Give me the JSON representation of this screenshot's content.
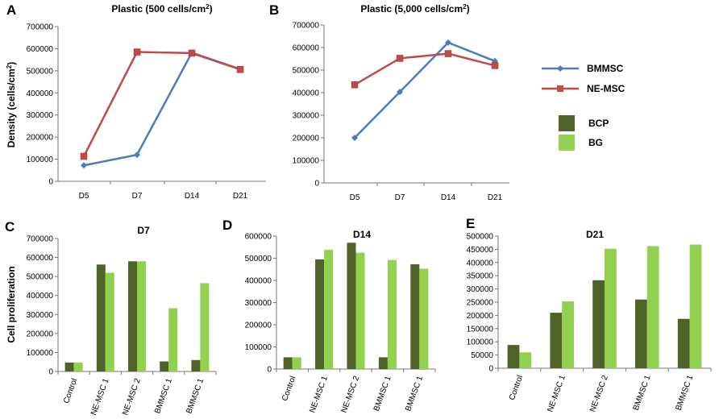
{
  "colors": {
    "bmmsc": "#4a7ebb",
    "nemsc": "#be4b48",
    "bcp": "#4f6228",
    "bg": "#92d050"
  },
  "legend": {
    "lines": [
      "BMMSC",
      "NE-MSC"
    ],
    "bars": [
      "BCP",
      "BG"
    ]
  },
  "chart_data": [
    {
      "panel": "A",
      "type": "line",
      "title": "Plastic  (500 cells/cm",
      "title_sup": "2",
      "title_end": ")",
      "ylabel": "Density (cells/cm",
      "ylabel_sup": "2",
      "ylabel_end": ")",
      "categories": [
        "D5",
        "D7",
        "D14",
        "D21"
      ],
      "ylim": [
        0,
        700000
      ],
      "yticks": [
        "0",
        "100000",
        "200000",
        "300000",
        "400000",
        "500000",
        "600000",
        "700000"
      ],
      "series": [
        {
          "name": "BMMSC",
          "values": [
            72000,
            120000,
            582000,
            507000
          ]
        },
        {
          "name": "NE-MSC",
          "values": [
            113000,
            585000,
            580000,
            506000
          ]
        }
      ]
    },
    {
      "panel": "B",
      "type": "line",
      "title": "Plastic  (5,000 cells/cm",
      "title_sup": "2",
      "title_end": ")",
      "categories": [
        "D5",
        "D7",
        "D14",
        "D21"
      ],
      "ylim": [
        0,
        700000
      ],
      "yticks": [
        "0",
        "100000",
        "200000",
        "300000",
        "400000",
        "500000",
        "600000",
        "700000"
      ],
      "series": [
        {
          "name": "BMMSC",
          "values": [
            200000,
            403000,
            622000,
            540000
          ]
        },
        {
          "name": "NE-MSC",
          "values": [
            435000,
            552000,
            573000,
            520000
          ]
        }
      ]
    },
    {
      "panel": "C",
      "type": "bar",
      "title": "D7",
      "ylabel": "Cell proliferation",
      "categories": [
        "Control",
        "NE-MSC 1",
        "NE-MSC 2",
        "BMMSC 1",
        "BMMSC 1"
      ],
      "ylim": [
        0,
        700000
      ],
      "yticks": [
        "0",
        "100000",
        "200000",
        "300000",
        "400000",
        "500000",
        "600000",
        "700000"
      ],
      "series": [
        {
          "name": "BCP",
          "values": [
            47000,
            563000,
            580000,
            53000,
            60000
          ]
        },
        {
          "name": "BG",
          "values": [
            47000,
            520000,
            580000,
            333000,
            465000
          ]
        }
      ]
    },
    {
      "panel": "D",
      "type": "bar",
      "title": "D14",
      "categories": [
        "Control",
        "NE-MSC 1",
        "NE-MSC 2",
        "BMMSC 1",
        "BMMSC 1"
      ],
      "ylim": [
        0,
        600000
      ],
      "yticks": [
        "0",
        "100000",
        "200000",
        "300000",
        "400000",
        "500000",
        "600000"
      ],
      "series": [
        {
          "name": "BCP",
          "values": [
            53000,
            495000,
            570000,
            53000,
            473000
          ]
        },
        {
          "name": "BG",
          "values": [
            53000,
            538000,
            525000,
            492000,
            453000
          ]
        }
      ]
    },
    {
      "panel": "E",
      "type": "bar",
      "title": "D21",
      "categories": [
        "Control",
        "NE-MSC 1",
        "NE-MSC 2",
        "BMMSC 1",
        "BMMSC 1"
      ],
      "ylim": [
        0,
        500000
      ],
      "yticks": [
        "0",
        "50000",
        "100000",
        "150000",
        "200000",
        "250000",
        "300000",
        "350000",
        "400000",
        "450000",
        "500000"
      ],
      "series": [
        {
          "name": "BCP",
          "values": [
            88000,
            210000,
            333000,
            260000,
            187000
          ]
        },
        {
          "name": "BG",
          "values": [
            60000,
            253000,
            452000,
            462000,
            468000
          ]
        }
      ]
    }
  ]
}
